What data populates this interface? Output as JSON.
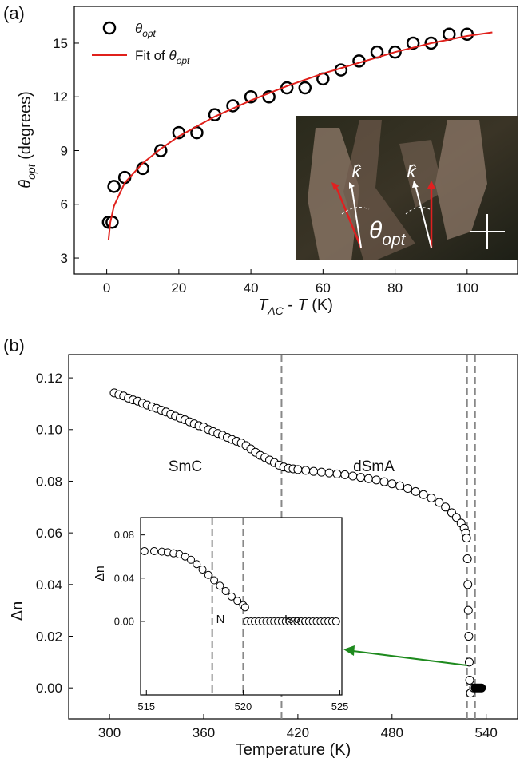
{
  "chart_data": [
    {
      "type": "scatter",
      "panel_label": "(a)",
      "xlabel": [
        {
          "text": "T",
          "italic": true
        },
        {
          "text": "AC",
          "italic": true,
          "sub": true
        },
        {
          "text": " - "
        },
        {
          "text": "T",
          "italic": true
        },
        {
          "text": " (K)"
        }
      ],
      "ylabel": [
        {
          "text": "θ",
          "italic": true
        },
        {
          "text": "opt",
          "italic": true,
          "sub": true
        },
        {
          "text": " (degrees)"
        }
      ],
      "xlim": [
        -9,
        114
      ],
      "xticks": [
        0,
        20,
        40,
        60,
        80,
        100
      ],
      "ylim": [
        2.11,
        17.05
      ],
      "yticks": [
        3,
        6,
        9,
        12,
        15
      ],
      "legend": "upper left",
      "series": [
        {
          "name": [
            {
              "text": "θ",
              "italic": true
            },
            {
              "text": "opt",
              "italic": true,
              "sub": true
            }
          ],
          "type": "scatter",
          "color": "#000000",
          "fill": "#ffffff",
          "x": [
            0.5,
            1.5,
            2,
            5,
            10,
            15,
            20,
            25,
            30,
            35,
            40,
            45,
            50,
            55,
            60,
            65,
            70,
            75,
            80,
            85,
            90,
            95,
            100
          ],
          "values": [
            5,
            5,
            7,
            7.5,
            8,
            9,
            10,
            10,
            11,
            11.5,
            12,
            12,
            12.5,
            12.5,
            13,
            13.5,
            14,
            14.5,
            14.5,
            15,
            15,
            15.5,
            15.5
          ]
        },
        {
          "name": [
            {
              "text": "Fit of "
            },
            {
              "text": "θ",
              "italic": true
            },
            {
              "text": "opt",
              "italic": true,
              "sub": true
            }
          ],
          "type": "line",
          "color": "#e0201b",
          "x": [
            0.5,
            1,
            2,
            5,
            10,
            15,
            20,
            30,
            40,
            50,
            60,
            70,
            80,
            90,
            100,
            107
          ],
          "values": [
            4.0,
            5.0,
            5.9,
            7.2,
            8.3,
            9.1,
            9.8,
            10.9,
            11.8,
            12.6,
            13.3,
            13.9,
            14.5,
            15.0,
            15.4,
            15.6
          ]
        }
      ],
      "inset_labels": {
        "k": "k̂",
        "theta": [
          {
            "text": "θ"
          },
          {
            "text": "opt",
            "sub": true
          }
        ]
      }
    },
    {
      "type": "scatter",
      "panel_label": "(b)",
      "xlabel": [
        {
          "text": "Temperature (K)"
        }
      ],
      "ylabel": [
        {
          "text": "Δn"
        }
      ],
      "xlim": [
        274,
        560
      ],
      "xticks": [
        300,
        360,
        420,
        480,
        540
      ],
      "ylim": [
        -0.012,
        0.129
      ],
      "yticks": [
        {
          "value": 0,
          "label": "0.00"
        },
        {
          "value": 0.02,
          "label": "0.02"
        },
        {
          "value": 0.04,
          "label": "0.04"
        },
        {
          "value": 0.06,
          "label": "0.06"
        },
        {
          "value": 0.08,
          "label": "0.08"
        },
        {
          "value": 0.1,
          "label": "0.10"
        },
        {
          "value": 0.12,
          "label": "0.12"
        }
      ],
      "vlines": [
        409.6,
        527.8,
        532.9
      ],
      "annotations": [
        "SmC",
        "dSmA"
      ],
      "series": [
        {
          "type": "scatter",
          "color": "#000000",
          "fill": "#ffffff",
          "x": [
            303,
            306,
            309,
            312,
            315,
            318,
            321,
            324,
            327,
            330,
            333,
            336,
            339,
            342,
            345,
            348,
            351,
            354,
            357,
            360,
            363,
            366,
            369,
            372,
            375,
            378,
            381,
            384,
            387,
            390,
            393,
            396,
            399,
            402,
            405,
            408,
            411,
            414,
            417,
            420,
            425,
            430,
            435,
            440,
            445,
            450,
            455,
            460,
            465,
            470,
            475,
            480,
            485,
            490,
            495,
            500,
            505,
            510,
            514,
            518,
            521,
            524,
            526,
            527,
            527.5,
            528,
            528.3,
            528.6,
            528.9,
            529.2,
            529.5,
            530,
            532
          ],
          "values": [
            0.1142,
            0.1135,
            0.113,
            0.1122,
            0.1115,
            0.111,
            0.1102,
            0.1095,
            0.1088,
            0.1082,
            0.1075,
            0.1068,
            0.106,
            0.1052,
            0.1045,
            0.1038,
            0.103,
            0.1022,
            0.1015,
            0.101,
            0.1,
            0.0992,
            0.0985,
            0.0978,
            0.097,
            0.0962,
            0.0955,
            0.0948,
            0.0938,
            0.0925,
            0.0912,
            0.09,
            0.0892,
            0.0882,
            0.0872,
            0.0862,
            0.0855,
            0.085,
            0.0848,
            0.0845,
            0.0842,
            0.0838,
            0.0835,
            0.0832,
            0.0828,
            0.0825,
            0.082,
            0.0815,
            0.081,
            0.0805,
            0.0798,
            0.079,
            0.0782,
            0.0772,
            0.076,
            0.0748,
            0.0735,
            0.0718,
            0.07,
            0.0678,
            0.066,
            0.0638,
            0.0618,
            0.06,
            0.058,
            0.05,
            0.04,
            0.03,
            0.02,
            0.01,
            0.003,
            -0.002,
            0
          ]
        },
        {
          "type": "scatter",
          "color": "#000000",
          "fill": "#000000",
          "x": [
            533,
            534,
            535,
            536,
            537
          ],
          "values": [
            0,
            0,
            0,
            0,
            0
          ]
        }
      ]
    },
    {
      "type": "scatter",
      "inset": true,
      "ylabel": [
        {
          "text": "Δn"
        }
      ],
      "xlim": [
        514.7,
        525.1
      ],
      "xticks": [
        515,
        520,
        525
      ],
      "ylim": [
        -0.068,
        0.096
      ],
      "yticks": [
        {
          "value": 0,
          "label": "0.00"
        },
        {
          "value": 0.04,
          "label": "0.04"
        },
        {
          "value": 0.08,
          "label": "0.08"
        }
      ],
      "vlines": [
        518.4,
        520.0
      ],
      "annotations": [
        "N",
        "Iso."
      ],
      "series": [
        {
          "type": "scatter",
          "color": "#000000",
          "fill": "#ffffff",
          "x": [
            514.9,
            515.4,
            515.8,
            516.1,
            516.4,
            516.7,
            517,
            517.3,
            517.6,
            517.9,
            518.2,
            518.5,
            518.8,
            519.1,
            519.4,
            519.7,
            520,
            520.1,
            520.2,
            520.4,
            520.6,
            520.8,
            521,
            521.2,
            521.4,
            521.6,
            521.8,
            522,
            522.2,
            522.4,
            522.6,
            522.8,
            523,
            523.2,
            523.4,
            523.6,
            523.8,
            524,
            524.2,
            524.4,
            524.6,
            524.8
          ],
          "values": [
            0.065,
            0.065,
            0.0645,
            0.064,
            0.063,
            0.062,
            0.06,
            0.057,
            0.053,
            0.048,
            0.043,
            0.038,
            0.033,
            0.028,
            0.023,
            0.019,
            0.015,
            0.013,
            0,
            0,
            0,
            0,
            0,
            0,
            0,
            0,
            0,
            0,
            0,
            0,
            0,
            0,
            0,
            0,
            0,
            0,
            0,
            0,
            0,
            0,
            0,
            0
          ]
        }
      ]
    }
  ]
}
